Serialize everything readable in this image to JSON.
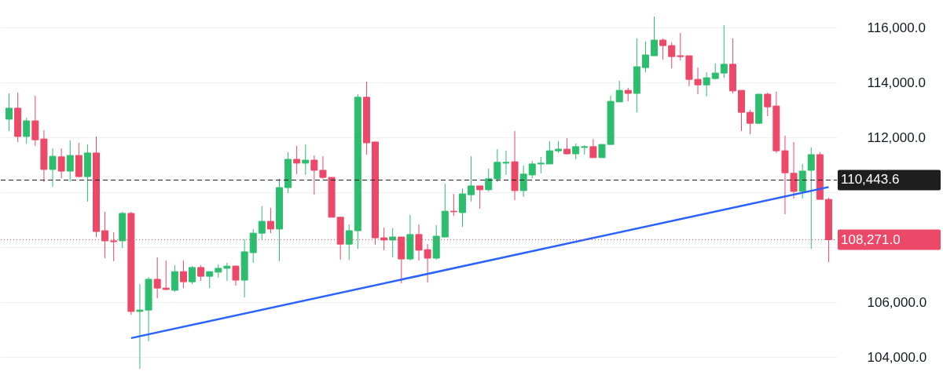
{
  "chart_data": {
    "type": "candlestick",
    "categories": [
      null,
      null,
      null,
      null,
      null,
      null,
      null,
      null,
      null,
      null,
      null,
      null,
      null,
      null,
      null,
      null,
      null,
      null,
      null,
      null,
      null,
      null,
      null,
      null,
      null,
      null,
      null,
      null,
      null,
      null,
      null,
      null,
      null,
      null,
      null,
      null,
      null,
      null,
      null,
      null,
      null,
      null,
      null,
      null,
      null,
      null,
      null,
      null,
      null,
      null,
      null,
      null,
      null,
      null,
      null,
      null,
      null,
      null,
      null,
      null,
      null,
      null,
      null,
      null,
      null,
      null,
      null,
      null,
      null,
      null,
      null,
      null,
      null,
      null,
      null,
      null,
      null,
      null,
      null,
      null,
      null,
      null,
      null,
      null,
      null,
      null,
      null,
      null,
      null,
      null,
      null,
      null,
      null,
      null,
      null
    ],
    "ylim": [
      103200,
      117000
    ],
    "yticks": [
      {
        "value": 104000,
        "label": "104,000.0"
      },
      {
        "value": 106000,
        "label": "106,000.0"
      },
      {
        "value": 108000,
        "label": null
      },
      {
        "value": 110000,
        "label": null
      },
      {
        "value": 112000,
        "label": "112,000.0"
      },
      {
        "value": 114000,
        "label": "114,000.0"
      },
      {
        "value": 116000,
        "label": "116,000.0"
      }
    ],
    "tick_labels": "y",
    "grid": "y",
    "ohlc": [
      [
        112660,
        113600,
        112230,
        113060
      ],
      [
        113060,
        113630,
        111830,
        112030
      ],
      [
        112030,
        112710,
        111770,
        112600
      ],
      [
        112600,
        113510,
        111690,
        111910
      ],
      [
        111940,
        112260,
        110370,
        110830
      ],
      [
        110830,
        111600,
        110200,
        111310
      ],
      [
        111290,
        111600,
        110510,
        110770
      ],
      [
        110770,
        111890,
        110400,
        111340
      ],
      [
        111340,
        111800,
        110540,
        110570
      ],
      [
        110570,
        111740,
        109660,
        111430
      ],
      [
        111430,
        112030,
        108370,
        108570
      ],
      [
        108600,
        109290,
        107600,
        108230
      ],
      [
        108230,
        108540,
        107490,
        108200
      ],
      [
        108230,
        109290,
        107970,
        109230
      ],
      [
        109230,
        109290,
        105540,
        105660
      ],
      [
        105660,
        106660,
        103570,
        105710
      ],
      [
        105710,
        106910,
        104570,
        106830
      ],
      [
        106830,
        107630,
        106140,
        106510
      ],
      [
        106510,
        107510,
        106430,
        106460
      ],
      [
        106430,
        107340,
        106370,
        107110
      ],
      [
        107110,
        107510,
        106510,
        106740
      ],
      [
        106740,
        107310,
        106660,
        107260
      ],
      [
        107260,
        107340,
        106770,
        106940
      ],
      [
        106940,
        107110,
        106510,
        107110
      ],
      [
        107090,
        107370,
        106890,
        107230
      ],
      [
        107230,
        107430,
        106770,
        107310
      ],
      [
        107310,
        107340,
        106600,
        106800
      ],
      [
        106800,
        108290,
        106170,
        107830
      ],
      [
        107800,
        108660,
        107430,
        108510
      ],
      [
        108510,
        109490,
        108290,
        108940
      ],
      [
        108940,
        109430,
        108510,
        108660
      ],
      [
        108660,
        110490,
        107490,
        110170
      ],
      [
        110170,
        111460,
        109970,
        111200
      ],
      [
        111200,
        111690,
        110660,
        111060
      ],
      [
        111060,
        111740,
        110630,
        111170
      ],
      [
        111170,
        111340,
        109910,
        110800
      ],
      [
        110800,
        111310,
        110490,
        110540
      ],
      [
        110540,
        110540,
        109090,
        109090
      ],
      [
        109090,
        109090,
        107540,
        108110
      ],
      [
        108110,
        108830,
        107540,
        108600
      ],
      [
        108600,
        113570,
        107940,
        113460
      ],
      [
        113460,
        114030,
        111370,
        111800
      ],
      [
        111830,
        111830,
        108090,
        108340
      ],
      [
        108340,
        108710,
        107890,
        108260
      ],
      [
        108260,
        108690,
        107630,
        108370
      ],
      [
        108370,
        108370,
        106690,
        107570
      ],
      [
        107570,
        109170,
        107510,
        108460
      ],
      [
        108460,
        108830,
        107510,
        107890
      ],
      [
        107910,
        108110,
        106710,
        107600
      ],
      [
        107600,
        108800,
        107540,
        108400
      ],
      [
        108370,
        110310,
        108370,
        109310
      ],
      [
        109310,
        109940,
        109140,
        109290
      ],
      [
        109260,
        110140,
        108740,
        109940
      ],
      [
        109910,
        111310,
        109660,
        110230
      ],
      [
        110230,
        110230,
        109400,
        110090
      ],
      [
        110090,
        110860,
        110030,
        110490
      ],
      [
        110490,
        111570,
        110370,
        111090
      ],
      [
        111060,
        111510,
        110630,
        111090
      ],
      [
        111110,
        112230,
        109710,
        110060
      ],
      [
        110060,
        110970,
        109830,
        110660
      ],
      [
        110630,
        111140,
        110510,
        111030
      ],
      [
        111030,
        111290,
        110690,
        111060
      ],
      [
        111030,
        111860,
        111030,
        111510
      ],
      [
        111510,
        111860,
        111430,
        111570
      ],
      [
        111570,
        111970,
        111370,
        111400
      ],
      [
        111400,
        111770,
        111200,
        111660
      ],
      [
        111630,
        111710,
        111370,
        111660
      ],
      [
        111660,
        111940,
        111260,
        111260
      ],
      [
        111260,
        111740,
        111260,
        111740
      ],
      [
        111740,
        113510,
        111740,
        113310
      ],
      [
        113290,
        114060,
        113290,
        113710
      ],
      [
        113710,
        113800,
        113310,
        113600
      ],
      [
        113600,
        115600,
        112910,
        114570
      ],
      [
        114540,
        115490,
        114370,
        115000
      ],
      [
        114970,
        116400,
        114970,
        115540
      ],
      [
        115540,
        115600,
        114830,
        115340
      ],
      [
        115340,
        115460,
        114510,
        114940
      ],
      [
        114970,
        115800,
        114800,
        114940
      ],
      [
        114970,
        114970,
        113860,
        114110
      ],
      [
        114110,
        114540,
        113570,
        113910
      ],
      [
        113910,
        114370,
        113490,
        114170
      ],
      [
        114140,
        114690,
        114110,
        114340
      ],
      [
        114340,
        116090,
        114170,
        114660
      ],
      [
        114660,
        115600,
        113600,
        113690
      ],
      [
        113710,
        113710,
        112230,
        112910
      ],
      [
        112910,
        113000,
        112110,
        112510
      ],
      [
        112510,
        113570,
        112510,
        113570
      ],
      [
        113570,
        113630,
        112770,
        113110
      ],
      [
        113140,
        113660,
        111430,
        111510
      ],
      [
        111510,
        112060,
        109200,
        110710
      ],
      [
        110690,
        111830,
        109770,
        110030
      ],
      [
        110030,
        111030,
        109770,
        110770
      ],
      [
        110800,
        111630,
        107940,
        111370
      ],
      [
        111370,
        111460,
        109740,
        109740
      ],
      [
        109740,
        109800,
        107460,
        108271
      ]
    ],
    "colors": [
      "#2dbd6e",
      "#ec4868",
      "#2dbd6e",
      "#ec4868",
      "#ec4868",
      "#2dbd6e",
      "#ec4868",
      "#2dbd6e",
      "#ec4868",
      "#2dbd6e",
      "#ec4868",
      "#ec4868",
      "#ec4868",
      "#2dbd6e",
      "#ec4868",
      "#2dbd6e",
      "#2dbd6e",
      "#ec4868",
      "#ec4868",
      "#2dbd6e",
      "#ec4868",
      "#2dbd6e",
      "#ec4868",
      "#2dbd6e",
      "#2dbd6e",
      "#2dbd6e",
      "#ec4868",
      "#2dbd6e",
      "#2dbd6e",
      "#2dbd6e",
      "#ec4868",
      "#2dbd6e",
      "#2dbd6e",
      "#ec4868",
      "#2dbd6e",
      "#ec4868",
      "#ec4868",
      "#ec4868",
      "#ec4868",
      "#2dbd6e",
      "#2dbd6e",
      "#ec4868",
      "#ec4868",
      "#ec4868",
      "#2dbd6e",
      "#ec4868",
      "#2dbd6e",
      "#ec4868",
      "#ec4868",
      "#2dbd6e",
      "#2dbd6e",
      "#ec4868",
      "#2dbd6e",
      "#2dbd6e",
      "#ec4868",
      "#2dbd6e",
      "#2dbd6e",
      "#2dbd6e",
      "#ec4868",
      "#2dbd6e",
      "#2dbd6e",
      "#2dbd6e",
      "#2dbd6e",
      "#2dbd6e",
      "#ec4868",
      "#2dbd6e",
      "#2dbd6e",
      "#ec4868",
      "#2dbd6e",
      "#2dbd6e",
      "#2dbd6e",
      "#ec4868",
      "#2dbd6e",
      "#2dbd6e",
      "#2dbd6e",
      "#ec4868",
      "#ec4868",
      "#ec4868",
      "#ec4868",
      "#ec4868",
      "#2dbd6e",
      "#2dbd6e",
      "#2dbd6e",
      "#ec4868",
      "#ec4868",
      "#ec4868",
      "#2dbd6e",
      "#ec4868",
      "#ec4868",
      "#ec4868",
      "#ec4868",
      "#2dbd6e",
      "#2dbd6e",
      "#ec4868",
      "#ec4868"
    ],
    "series": [
      {
        "type": "line",
        "color": "#2962ff",
        "values": [
          null,
          null,
          null,
          null,
          null,
          null,
          null,
          null,
          null,
          null,
          null,
          null,
          null,
          null,
          104690,
          null,
          null,
          null,
          null,
          null,
          null,
          null,
          null,
          null,
          null,
          null,
          null,
          null,
          null,
          null,
          null,
          null,
          null,
          null,
          null,
          null,
          null,
          null,
          null,
          null,
          null,
          null,
          null,
          null,
          null,
          null,
          null,
          null,
          null,
          null,
          null,
          null,
          null,
          null,
          null,
          null,
          null,
          null,
          null,
          null,
          null,
          null,
          null,
          null,
          null,
          null,
          null,
          null,
          null,
          null,
          null,
          null,
          null,
          null,
          null,
          null,
          null,
          null,
          null,
          null,
          null,
          null,
          null,
          null,
          null,
          null,
          null,
          null,
          null,
          null,
          null,
          null,
          null,
          null,
          110190
        ]
      }
    ],
    "ref_lines": [
      {
        "axis": "y",
        "value": 110443.6,
        "label": "110,443.6",
        "color": "#1e1e1e",
        "line_style": "dashed"
      },
      {
        "axis": "y",
        "value": 108271,
        "label": "108,271.0",
        "color": "#ec4868",
        "line_style": "dotted"
      }
    ]
  }
}
